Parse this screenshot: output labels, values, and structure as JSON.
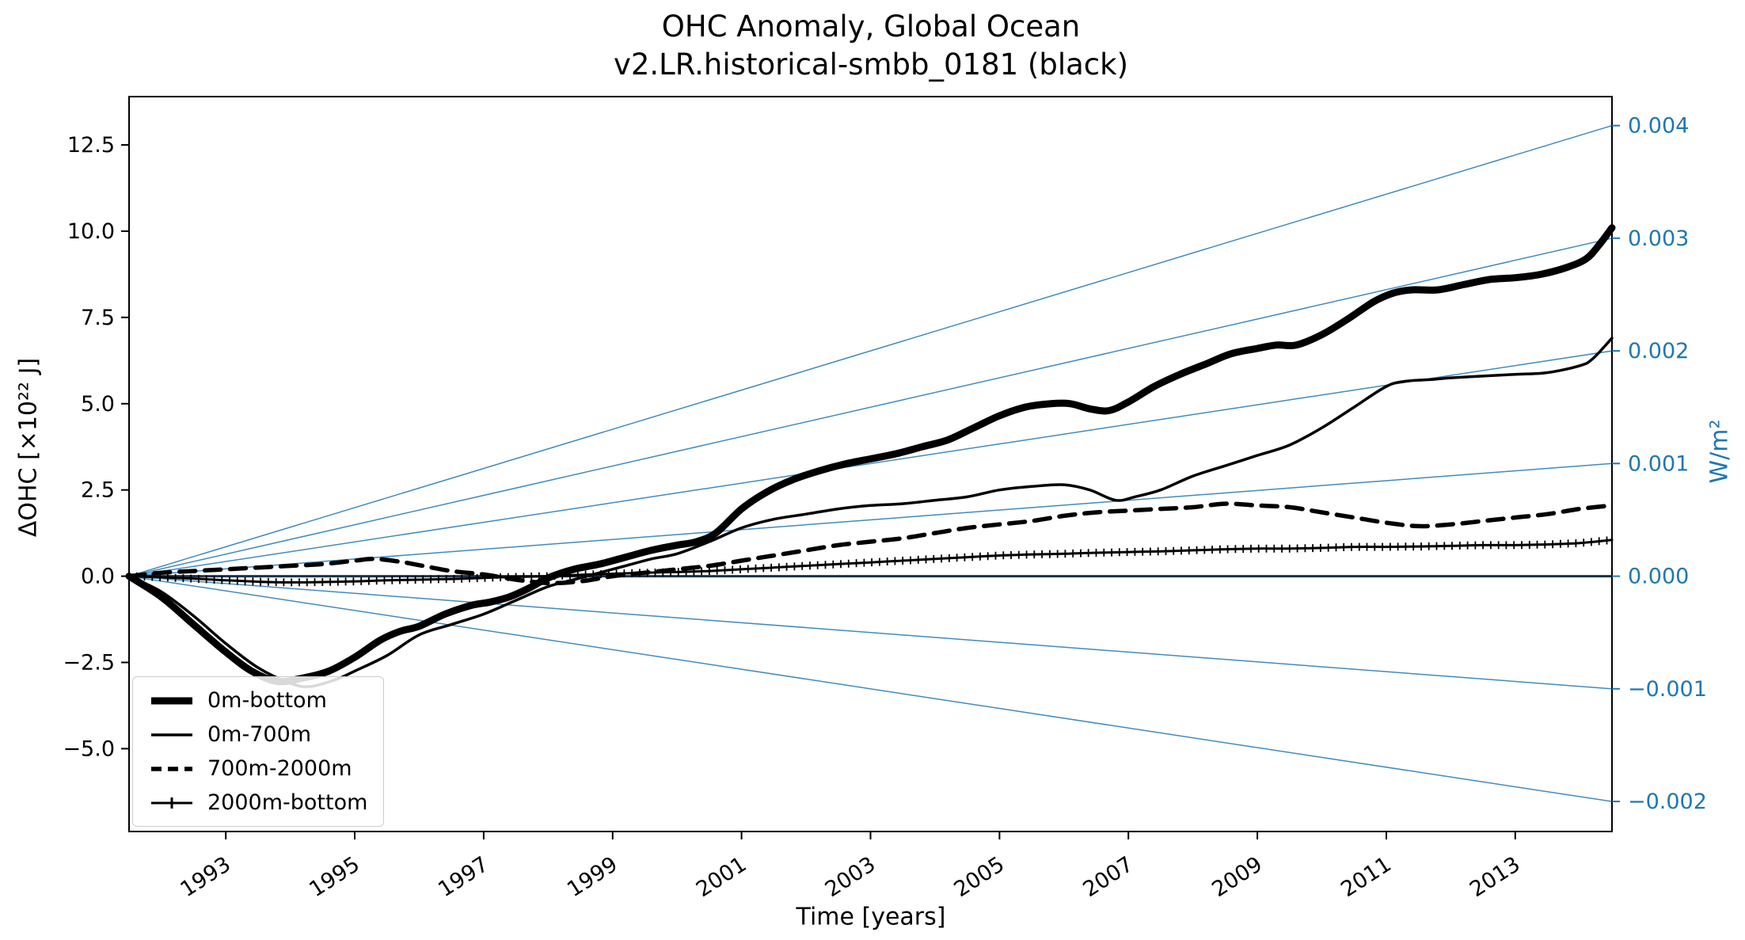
{
  "figure": {
    "title_line1": "OHC Anomaly, Global Ocean",
    "title_line2": "v2.LR.historical-smbb_0181 (black)",
    "xlabel": "Time [years]",
    "ylabel_left": "ΔOHC [×10²² J]",
    "ylabel_right": "W/m²"
  },
  "colors": {
    "series": "#000000",
    "right_axis": "#1f77b4",
    "fan_line": "#1f77b4",
    "zero_line": "#1b3147",
    "axis_text": "#000000"
  },
  "legend": {
    "position": "lower left",
    "items": [
      {
        "label": "0m-bottom",
        "style": "thick"
      },
      {
        "label": "0m-700m",
        "style": "thin"
      },
      {
        "label": "700m-2000m",
        "style": "dashed"
      },
      {
        "label": "2000m-bottom",
        "style": "plus"
      }
    ]
  },
  "chart_data": {
    "type": "line",
    "title": "OHC Anomaly, Global Ocean\nv2.LR.historical-smbb_0181 (black)",
    "xlabel": "Time [years]",
    "ylabel": "ΔOHC [×10²² J]",
    "ylabel_right": "W/m²",
    "grid": false,
    "xlim": [
      1991.5,
      2014.5
    ],
    "ylim": [
      -7.4,
      13.9
    ],
    "x_ticks": [
      1993,
      1995,
      1997,
      1999,
      2001,
      2003,
      2005,
      2007,
      2009,
      2011,
      2013
    ],
    "x_tick_labels": [
      "1993",
      "1995",
      "1997",
      "1999",
      "2001",
      "2003",
      "2005",
      "2007",
      "2009",
      "2011",
      "2013"
    ],
    "y_ticks_left": [
      12.5,
      10.0,
      7.5,
      5.0,
      2.5,
      0.0,
      -2.5,
      -5.0
    ],
    "y_tick_labels_left": [
      "12.5",
      "10.0",
      "7.5",
      "5.0",
      "2.5",
      "0.0",
      "−2.5",
      "−5.0"
    ],
    "right_axis": {
      "ticks_wm2": [
        0.004,
        0.003,
        0.002,
        0.001,
        0.0,
        -0.001,
        -0.002
      ],
      "tick_labels": [
        "0.004",
        "0.003",
        "0.002",
        "0.001",
        "0.000",
        "−0.001",
        "−0.002"
      ],
      "joules_per_wm2": 3265
    },
    "fan_lines": {
      "origin_x": 1991.5,
      "origin_y": 0,
      "wm2_values": [
        0.004,
        0.003,
        0.002,
        0.001,
        0.0,
        -0.001,
        -0.002
      ]
    },
    "series": [
      {
        "name": "0m-bottom",
        "label": "0m-bottom",
        "style": "solid",
        "width": 9,
        "color": "#000000",
        "x": [
          1991.5,
          1992,
          1992.5,
          1993,
          1993.4,
          1993.8,
          1994.2,
          1994.6,
          1995,
          1995.4,
          1995.7,
          1996,
          1996.4,
          1996.8,
          1997.1,
          1997.4,
          1997.7,
          1998,
          1998.4,
          1998.8,
          1999.2,
          1999.6,
          2000,
          2000.3,
          2000.6,
          2001,
          2001.4,
          2001.8,
          2002.2,
          2002.6,
          2003,
          2003.4,
          2003.8,
          2004.2,
          2004.6,
          2005,
          2005.4,
          2005.8,
          2006.1,
          2006.4,
          2006.7,
          2007,
          2007.4,
          2007.8,
          2008.2,
          2008.6,
          2009,
          2009.3,
          2009.6,
          2010,
          2010.4,
          2010.8,
          2011.1,
          2011.4,
          2011.8,
          2012.2,
          2012.6,
          2013,
          2013.4,
          2013.8,
          2014.1,
          2014.3,
          2014.5
        ],
        "y": [
          0,
          -0.6,
          -1.4,
          -2.2,
          -2.75,
          -3.05,
          -2.95,
          -2.75,
          -2.35,
          -1.85,
          -1.6,
          -1.45,
          -1.1,
          -0.85,
          -0.75,
          -0.6,
          -0.35,
          -0.05,
          0.2,
          0.35,
          0.55,
          0.75,
          0.9,
          1.0,
          1.25,
          1.95,
          2.45,
          2.8,
          3.05,
          3.25,
          3.4,
          3.55,
          3.75,
          3.95,
          4.3,
          4.65,
          4.9,
          5.0,
          5.0,
          4.85,
          4.8,
          5.05,
          5.5,
          5.85,
          6.15,
          6.45,
          6.6,
          6.7,
          6.7,
          7.0,
          7.45,
          7.95,
          8.2,
          8.3,
          8.3,
          8.45,
          8.6,
          8.65,
          8.75,
          8.95,
          9.2,
          9.6,
          10.1
        ]
      },
      {
        "name": "0m-700m",
        "label": "0m-700m",
        "style": "solid",
        "width": 3.5,
        "color": "#000000",
        "x": [
          1991.5,
          1992,
          1992.5,
          1993,
          1993.5,
          1994,
          1994.3,
          1994.7,
          1995,
          1995.5,
          1996,
          1996.5,
          1997,
          1997.5,
          1998,
          1998.4,
          1998.8,
          1999.2,
          1999.6,
          2000,
          2000.5,
          2001,
          2001.5,
          2002,
          2002.5,
          2003,
          2003.5,
          2004,
          2004.5,
          2005,
          2005.5,
          2006,
          2006.4,
          2006.8,
          2007.1,
          2007.5,
          2008,
          2008.5,
          2009,
          2009.5,
          2010,
          2010.5,
          2011,
          2011.3,
          2011.7,
          2012,
          2012.5,
          2013,
          2013.5,
          2014,
          2014.2,
          2014.5
        ],
        "y": [
          0,
          -0.45,
          -1.15,
          -1.95,
          -2.65,
          -3.1,
          -3.2,
          -3.0,
          -2.75,
          -2.3,
          -1.7,
          -1.4,
          -1.1,
          -0.7,
          -0.3,
          -0.1,
          0.1,
          0.3,
          0.5,
          0.65,
          1.0,
          1.4,
          1.65,
          1.8,
          1.95,
          2.05,
          2.1,
          2.2,
          2.3,
          2.5,
          2.6,
          2.65,
          2.5,
          2.2,
          2.3,
          2.5,
          2.9,
          3.2,
          3.5,
          3.8,
          4.3,
          4.9,
          5.5,
          5.65,
          5.7,
          5.75,
          5.8,
          5.85,
          5.9,
          6.1,
          6.3,
          6.9
        ]
      },
      {
        "name": "700m-2000m",
        "label": "700m-2000m",
        "style": "dashed",
        "width": 5.5,
        "color": "#000000",
        "x": [
          1991.5,
          1992,
          1992.5,
          1993,
          1993.5,
          1994,
          1994.5,
          1995,
          1995.3,
          1995.7,
          1996,
          1996.5,
          1997,
          1997.5,
          1998,
          1998.5,
          1999,
          1999.5,
          2000,
          2000.5,
          2001,
          2001.5,
          2002,
          2002.5,
          2003,
          2003.5,
          2004,
          2004.5,
          2005,
          2005.5,
          2006,
          2006.5,
          2007,
          2007.5,
          2008,
          2008.5,
          2009,
          2009.5,
          2010,
          2010.5,
          2011,
          2011.5,
          2012,
          2012.5,
          2013,
          2013.5,
          2014,
          2014.5
        ],
        "y": [
          0,
          0.1,
          0.15,
          0.2,
          0.25,
          0.3,
          0.35,
          0.45,
          0.5,
          0.42,
          0.32,
          0.15,
          0.05,
          -0.1,
          -0.2,
          -0.15,
          0.0,
          0.1,
          0.2,
          0.3,
          0.45,
          0.6,
          0.75,
          0.9,
          1.0,
          1.1,
          1.25,
          1.4,
          1.5,
          1.6,
          1.75,
          1.85,
          1.9,
          1.95,
          2.0,
          2.1,
          2.05,
          2.0,
          1.85,
          1.7,
          1.55,
          1.45,
          1.5,
          1.6,
          1.7,
          1.8,
          1.95,
          2.05
        ]
      },
      {
        "name": "2000m-bottom",
        "label": "2000m-bottom",
        "style": "plus",
        "width": 3,
        "color": "#000000",
        "x": [
          1991.5,
          1992,
          1992.5,
          1993,
          1993.5,
          1994,
          1994.5,
          1995,
          1995.5,
          1996,
          1996.5,
          1997,
          1997.5,
          1998,
          1998.5,
          1999,
          1999.5,
          2000,
          2000.5,
          2001,
          2001.5,
          2002,
          2002.5,
          2003,
          2003.5,
          2004,
          2004.5,
          2005,
          2005.5,
          2006,
          2006.5,
          2007,
          2007.5,
          2008,
          2008.5,
          2009,
          2009.5,
          2010,
          2010.5,
          2011,
          2011.5,
          2012,
          2012.5,
          2013,
          2013.5,
          2014,
          2014.5
        ],
        "y": [
          0,
          -0.03,
          -0.07,
          -0.12,
          -0.16,
          -0.18,
          -0.17,
          -0.15,
          -0.12,
          -0.1,
          -0.08,
          -0.05,
          -0.02,
          0.0,
          0.04,
          0.07,
          0.1,
          0.12,
          0.15,
          0.2,
          0.25,
          0.3,
          0.35,
          0.4,
          0.45,
          0.5,
          0.55,
          0.6,
          0.63,
          0.65,
          0.68,
          0.7,
          0.72,
          0.75,
          0.78,
          0.8,
          0.8,
          0.82,
          0.85,
          0.85,
          0.86,
          0.88,
          0.9,
          0.9,
          0.92,
          0.96,
          1.05
        ]
      }
    ]
  }
}
